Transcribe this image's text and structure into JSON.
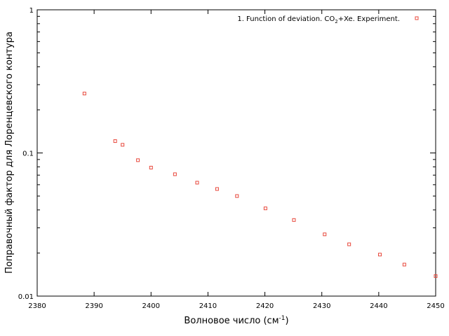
{
  "chart_data": {
    "type": "scatter",
    "title": "",
    "xlabel": "Волновое число (см",
    "xlabel_sup": "-1",
    "xlabel_suffix": ")",
    "ylabel": "Поправочный фактор для Лоренцевского контура",
    "xlim": [
      2380,
      2450
    ],
    "ylim": [
      0.01,
      1
    ],
    "y_scale": "log",
    "grid": false,
    "legend_position": "top-right",
    "x_ticks": [
      2380,
      2390,
      2400,
      2410,
      2420,
      2430,
      2440,
      2450
    ],
    "x_tick_labels": [
      "2380",
      "2390",
      "2400",
      "2410",
      "2420",
      "2430",
      "2440",
      "2450"
    ],
    "y_ticks": [
      0.01,
      0.1,
      1
    ],
    "y_tick_labels": [
      "0.01",
      "0.1",
      "1"
    ],
    "series": [
      {
        "name": "1. Function of deviation. CO2+Xe. Experiment.",
        "legend_parts": {
          "prefix": "1. Function of deviation. CO",
          "subscript": "2",
          "suffix": "+Xe. Experiment."
        },
        "color": "#e8483c",
        "marker": "square-open",
        "x": [
          2388.3,
          2393.7,
          2395.0,
          2397.7,
          2400.0,
          2404.2,
          2408.1,
          2411.6,
          2415.1,
          2420.1,
          2425.1,
          2430.5,
          2434.8,
          2440.2,
          2444.5,
          2450.0
        ],
        "y": [
          0.26,
          0.121,
          0.114,
          0.089,
          0.079,
          0.071,
          0.062,
          0.056,
          0.05,
          0.041,
          0.034,
          0.027,
          0.023,
          0.0195,
          0.0166,
          0.0138
        ]
      }
    ]
  }
}
